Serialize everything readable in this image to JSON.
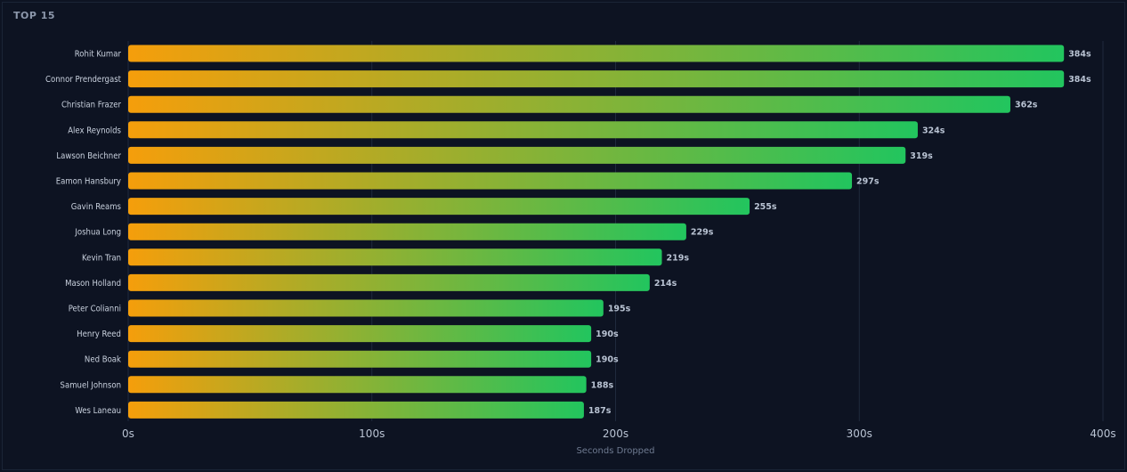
{
  "panel": {
    "title": "TOP 15"
  },
  "chart_data": {
    "type": "bar",
    "orientation": "horizontal",
    "title": "",
    "xlabel": "Seconds Dropped",
    "ylabel": "",
    "xlim": [
      0,
      400
    ],
    "ticks": [
      0,
      100,
      200,
      300,
      400
    ],
    "tick_labels": [
      "0s",
      "100s",
      "200s",
      "300s",
      "400s"
    ],
    "grid": true,
    "categories": [
      "Rohit Kumar",
      "Connor Prendergast",
      "Christian Frazer",
      "Alex Reynolds",
      "Lawson Beichner",
      "Eamon Hansbury",
      "Gavin Reams",
      "Joshua Long",
      "Kevin Tran",
      "Mason Holland",
      "Peter Colianni",
      "Henry Reed",
      "Ned Boak",
      "Samuel Johnson",
      "Wes Laneau"
    ],
    "values": [
      384,
      384,
      362,
      324,
      319,
      297,
      255,
      229,
      219,
      214,
      195,
      190,
      190,
      188,
      187
    ],
    "value_labels": [
      "384s",
      "384s",
      "362s",
      "324s",
      "319s",
      "297s",
      "255s",
      "229s",
      "219s",
      "214s",
      "195s",
      "190s",
      "190s",
      "188s",
      "187s"
    ],
    "colors": {
      "gradient_start": "#f59e0b",
      "gradient_end": "#22c55e",
      "grid": "#1f2a3d",
      "background": "#0d1322"
    }
  }
}
